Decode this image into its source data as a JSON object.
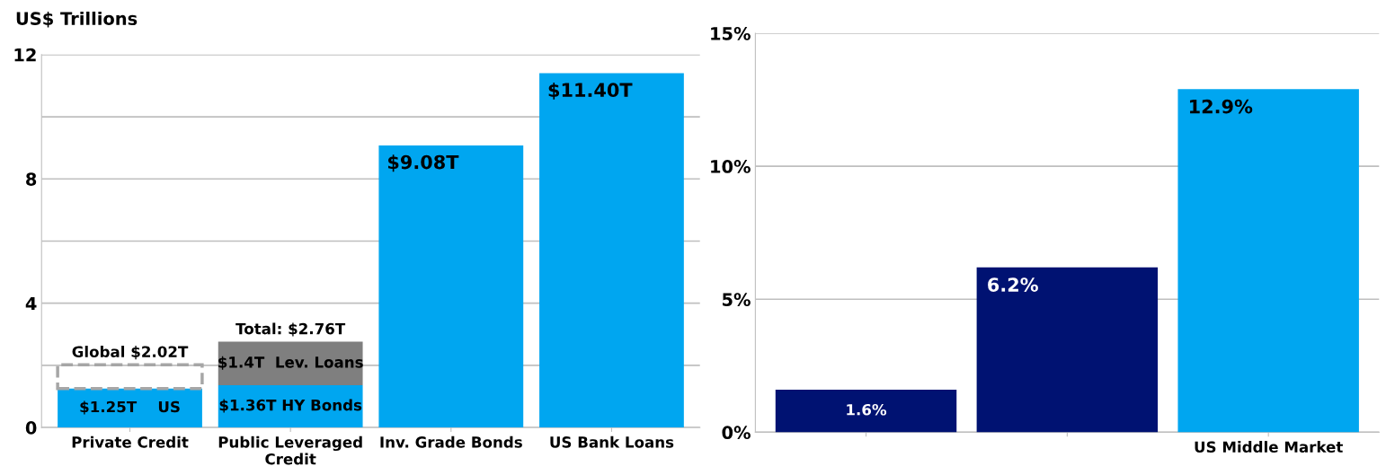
{
  "chart_data": [
    {
      "type": "bar",
      "ylabel": "US$ Trillions",
      "stacked": true,
      "grid": "y",
      "categories": [
        "Private Credit",
        "Public Leveraged Credit",
        "Inv. Grade Bonds",
        "US Bank Loans"
      ],
      "ylim": [
        0,
        12
      ],
      "yticks": [
        0,
        {
          "value": 2,
          "label": null
        },
        4,
        {
          "value": 6,
          "label": null
        },
        8,
        {
          "value": 10,
          "label": null
        },
        12
      ],
      "series": [
        {
          "color": "#00a6f0",
          "values": [
            1.25,
            1.36,
            9.08,
            11.4
          ],
          "value_labels": [
            "$1.25T    US",
            "$1.36T HY Bonds",
            "$9.08T",
            "$11.40T"
          ]
        },
        {
          "color": "#7f7f7f",
          "values": [
            null,
            1.4,
            null,
            null
          ],
          "value_labels": [
            null,
            "$1.4T  Lev. Loans",
            null,
            null
          ]
        },
        {
          "color": "#a6a6a6",
          "line_style": "dashed",
          "values": [
            0.77,
            null,
            null,
            null
          ]
        }
      ],
      "annotations": [
        {
          "text": "Global $2.02T",
          "x": "Private Credit",
          "y": 2.02
        },
        {
          "text": "Total: $2.76T",
          "x": "Public Leveraged Credit",
          "y": 2.76
        }
      ]
    },
    {
      "type": "bar",
      "grid": "y",
      "categories": [
        null,
        null,
        "US Middle Market"
      ],
      "ylim": [
        0,
        15
      ],
      "yticks": [
        {
          "value": 0,
          "label": "0%"
        },
        {
          "value": 5,
          "label": "5%"
        },
        {
          "value": 10,
          "label": "10%"
        },
        {
          "value": 15,
          "label": "15%"
        }
      ],
      "values": [
        1.6,
        6.2,
        12.9
      ],
      "colors": [
        "#001272",
        "#001272",
        "#00a6f0"
      ],
      "value_labels": [
        "1.6%",
        "6.2%",
        "12.9%"
      ]
    }
  ]
}
